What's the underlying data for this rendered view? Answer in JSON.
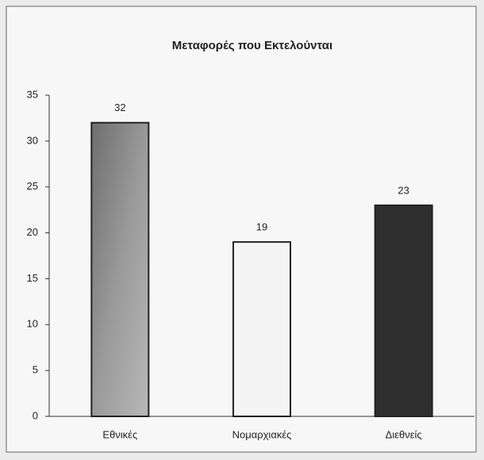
{
  "chart_data": {
    "type": "bar",
    "title": "Μεταφορές που Εκτελούνται",
    "categories": [
      "Εθνικές",
      "Νομαρχιακές",
      "Διεθνείς"
    ],
    "values": [
      32,
      19,
      23
    ],
    "colors": [
      "#8a8a8a",
      "#f4f4f4",
      "#2e2e2e"
    ],
    "ylim": [
      0,
      35
    ],
    "yticks": [
      0,
      5,
      10,
      15,
      20,
      25,
      30,
      35
    ],
    "grid": false
  }
}
